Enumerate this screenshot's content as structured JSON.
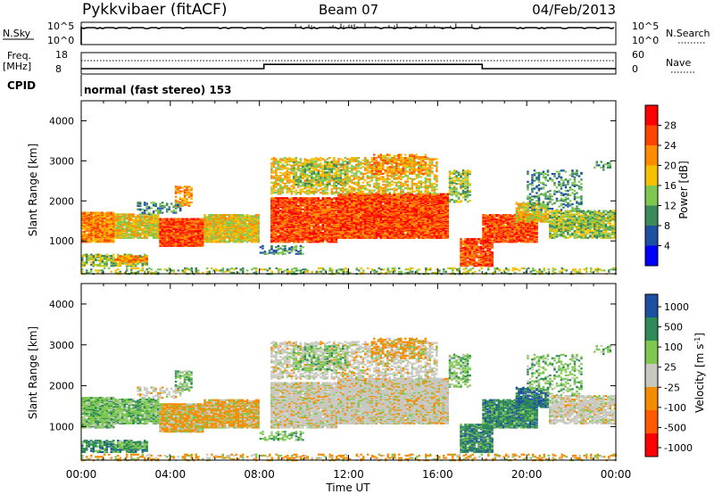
{
  "header": {
    "station": "Pykkvibaer (fitACF)",
    "beam": "Beam 07",
    "date": "04/Feb/2013"
  },
  "top_panels": {
    "nsky_label": "N.Sky",
    "nsearch_label": "N.Search",
    "nsky_ticks": [
      "10^5",
      "10^0"
    ],
    "nsearch_ticks": [
      "10^5",
      "10^0"
    ],
    "freq_label": "Freq.",
    "freq_unit": "[MHz]",
    "freq_ticks": [
      "18",
      "8"
    ],
    "nave_label": "Nave",
    "nave_ticks": [
      "60",
      "0"
    ],
    "cpid_label": "CPID",
    "cpid_value": "normal (fast stereo) 153"
  },
  "colors": {
    "power": [
      "#0000ff",
      "#1d4fa3",
      "#3c8a5a",
      "#7ec850",
      "#f5c000",
      "#ff8c00",
      "#ff4500",
      "#ff0000"
    ],
    "velocity": [
      "#1d4fa3",
      "#2e8b57",
      "#7ec850",
      "#c8c8c0",
      "#f58c00",
      "#ff5a00",
      "#ff0000"
    ]
  },
  "chart_data": [
    {
      "type": "heatmap",
      "title": "",
      "xlabel": "Time UT",
      "ylabel": "Slant Range [km]",
      "xticks": [
        "00:00",
        "04:00",
        "08:00",
        "12:00",
        "16:00",
        "20:00",
        "00:00"
      ],
      "yticks": [
        "1000",
        "2000",
        "3000",
        "4000"
      ],
      "ylim": [
        180,
        4500
      ],
      "colorbar_label": "Power [dB]",
      "colorbar_ticks": [
        "4",
        "8",
        "12",
        "16",
        "20",
        "24",
        "28"
      ]
    },
    {
      "type": "heatmap",
      "title": "",
      "xlabel": "Time UT",
      "ylabel": "Slant Range [km]",
      "xticks": [
        "00:00",
        "04:00",
        "08:00",
        "12:00",
        "16:00",
        "20:00",
        "00:00"
      ],
      "yticks": [
        "1000",
        "2000",
        "3000",
        "4000"
      ],
      "ylim": [
        180,
        4500
      ],
      "colorbar_label": "Velocity [m s^-1]",
      "colorbar_ticks": [
        "1000",
        "500",
        "100",
        "25",
        "-25",
        "-100",
        "-500",
        "-1000"
      ]
    },
    {
      "type": "line",
      "series": [
        {
          "name": "Freq.",
          "x": [
            0,
            8.2,
            8.2,
            18.0,
            18.0,
            24
          ],
          "y": [
            10.5,
            10.5,
            12.5,
            12.5,
            10.5,
            10.5
          ]
        }
      ],
      "ylim": [
        8,
        18
      ]
    }
  ]
}
